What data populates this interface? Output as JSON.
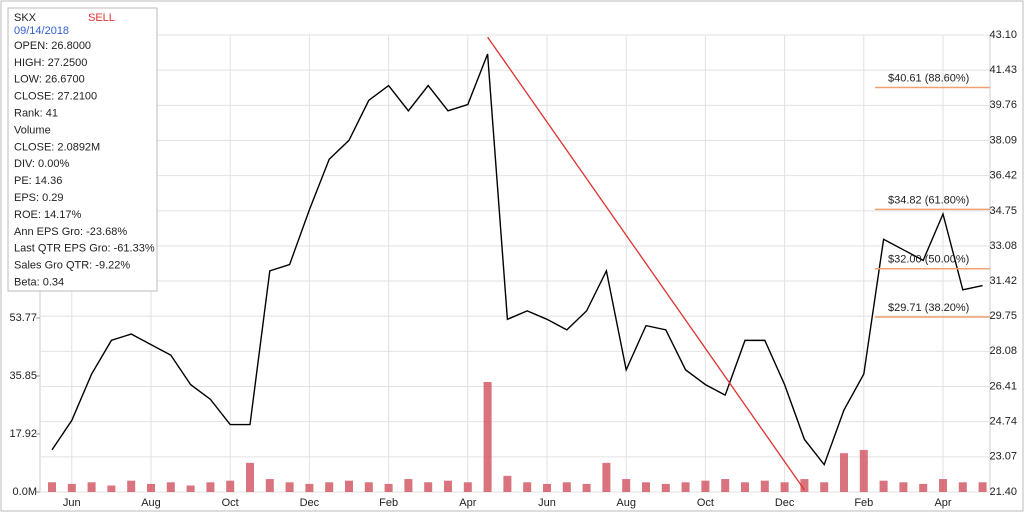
{
  "chart_data": {
    "type": "line",
    "categories": [
      null,
      "Jun",
      null,
      null,
      null,
      "Aug",
      null,
      null,
      null,
      "Oct",
      null,
      null,
      null,
      "Dec",
      null,
      null,
      null,
      "Feb",
      null,
      null,
      null,
      "Apr",
      null,
      null,
      null,
      "Jun",
      null,
      null,
      null,
      "Aug",
      null,
      null,
      null,
      "Oct",
      null,
      null,
      null,
      "Dec",
      null,
      null,
      null,
      "Feb",
      null,
      null,
      null,
      "Apr",
      null,
      null
    ],
    "series": [
      {
        "color": "#000000",
        "values": [
          23.4,
          24.8,
          27.0,
          28.6,
          28.9,
          28.4,
          27.9,
          26.5,
          25.8,
          24.6,
          24.6,
          31.9,
          32.2,
          34.8,
          37.2,
          38.1,
          40.0,
          40.7,
          39.5,
          40.7,
          39.5,
          39.8,
          42.2,
          29.6,
          30.0,
          29.6,
          29.1,
          30.0,
          31.9,
          27.2,
          29.3,
          29.1,
          27.2,
          26.5,
          26.0,
          28.6,
          28.6,
          26.5,
          23.9,
          22.7,
          25.3,
          27.0,
          33.4,
          32.9,
          32.4,
          34.6,
          31.0,
          31.2
        ]
      },
      {
        "axis": "y2",
        "type": "bar",
        "color": "#d0505c",
        "values": [
          3,
          2.5,
          3,
          2,
          3.5,
          2.5,
          3,
          2,
          3,
          3.5,
          9,
          4,
          3,
          2.5,
          3,
          3.5,
          3,
          2.5,
          4,
          3,
          3.5,
          3,
          34,
          5,
          3,
          2.5,
          3,
          2.5,
          9,
          4,
          3,
          2.5,
          3,
          3.5,
          4,
          3,
          3.5,
          3,
          4,
          3,
          12,
          13,
          3.5,
          3,
          2.5,
          4,
          3,
          3
        ]
      }
    ],
    "ylim": [
      21.4,
      43.1
    ],
    "yticks": [
      {
        "value": 43.1,
        "label": "43.10"
      },
      41.43,
      39.76,
      38.09,
      36.42,
      34.75,
      33.08,
      31.42,
      29.75,
      28.08,
      26.41,
      24.74,
      23.07,
      {
        "value": 21.4,
        "label": "21.40"
      }
    ],
    "y2lim": [
      0,
      141.2
    ],
    "y2ticks": [
      {
        "value": 0,
        "label": "0.0M"
      },
      17.92,
      35.85,
      53.77
    ],
    "grid": true,
    "trend_line": {
      "color": "#e03030",
      "from": {
        "index": 22,
        "value": 43.0
      },
      "to": {
        "index": 38,
        "value": 21.5
      }
    },
    "fib_levels": [
      {
        "value": 40.61,
        "label": "$40.61 (88.60%)"
      },
      {
        "value": 34.82,
        "label": "$34.82 (61.80%)"
      },
      {
        "value": 32.0,
        "label": "$32.00 (50.00%)"
      },
      {
        "value": 29.71,
        "label": "$29.71 (38.20%)"
      }
    ],
    "fib_color": "#f0a070",
    "info_box": {
      "symbol": "SKX",
      "signal": "SELL",
      "date": "09/14/2018",
      "lines": [
        "OPEN: 26.8000",
        "HIGH: 27.2500",
        "LOW: 26.6700",
        "CLOSE: 27.2100",
        "Rank: 41",
        "Volume",
        "CLOSE: 2.0892M",
        "DIV: 0.00%",
        "PE: 14.36",
        "EPS: 0.29",
        "ROE: 14.17%",
        "Ann EPS Gro: -23.68%",
        "Last QTR EPS Gro: -61.33%",
        "Sales Gro QTR: -9.22%",
        "Beta: 0.34"
      ]
    }
  }
}
